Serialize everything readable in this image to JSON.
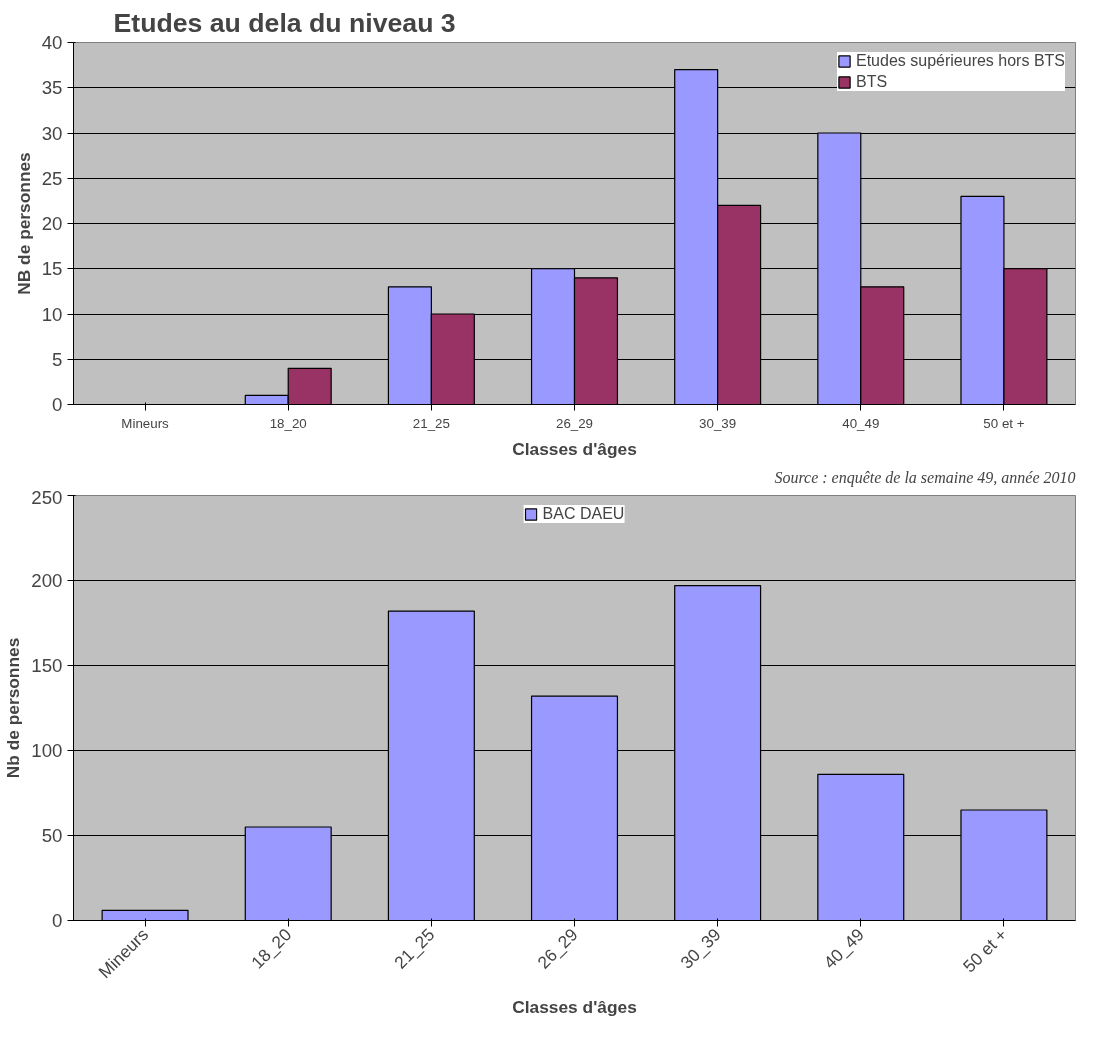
{
  "chart_data": [
    {
      "type": "bar",
      "title": "Etudes au dela du niveau 3",
      "xlabel": "Classes d'âges",
      "ylabel": "NB de personnes",
      "categories": [
        "Mineurs",
        "18_20",
        "21_25",
        "26_29",
        "30_39",
        "40_49",
        "50 et +"
      ],
      "series": [
        {
          "name": "Etudes supérieures hors BTS",
          "color": "#9999ff",
          "values": [
            null,
            1,
            13,
            15,
            37,
            30,
            23
          ]
        },
        {
          "name": "BTS",
          "color": "#993366",
          "values": [
            null,
            4,
            10,
            14,
            22,
            13,
            15
          ]
        }
      ],
      "ylim": [
        0,
        40
      ],
      "yticks": [
        0,
        5,
        10,
        15,
        20,
        25,
        30,
        35,
        40
      ],
      "grid": "y",
      "legend": "top right",
      "annotations": [
        "Source : enquête de la semaine 49, année 2010"
      ]
    },
    {
      "type": "bar",
      "xlabel": "Classes d'âges",
      "ylabel": "Nb de personnes",
      "categories": [
        "Mineurs",
        "18_20",
        "21_25",
        "26_29",
        "30_39",
        "40_49",
        "50 et +"
      ],
      "series": [
        {
          "name": "BAC DAEU",
          "color": "#9999ff",
          "values": [
            6,
            55,
            182,
            132,
            197,
            86,
            65
          ]
        }
      ],
      "ylim": [
        0,
        250
      ],
      "yticks": [
        0,
        50,
        100,
        150,
        200,
        250
      ],
      "grid": "y",
      "legend": "top"
    }
  ]
}
